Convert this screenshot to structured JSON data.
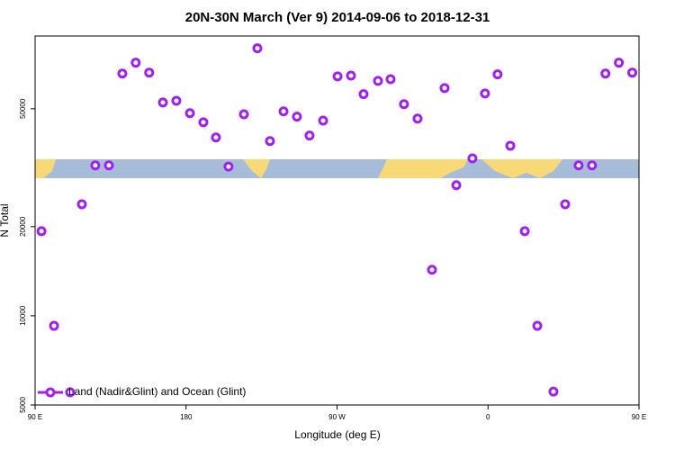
{
  "chart_data": {
    "type": "scatter",
    "title": "20N-30N March (Ver 9)   2014-09-06 to 2018-12-31",
    "x_label": "Longitude (deg E)",
    "y_label": "N Total",
    "log_y": true,
    "xlim": [
      90,
      450
    ],
    "ylim": [
      5000,
      88000
    ],
    "xticks": [
      {
        "value": 90,
        "label": "90 E"
      },
      {
        "value": 180,
        "label": "180"
      },
      {
        "value": 270,
        "label": "90 W"
      },
      {
        "value": 360,
        "label": "0"
      },
      {
        "value": 450,
        "label": "90 E"
      }
    ],
    "xticks_extra": [],
    "yticks": [
      5000,
      10000,
      20000,
      50000
    ],
    "legend": "bottom-left",
    "series": [
      {
        "name": "Land (Nadir&Glint) and Ocean (Glint)",
        "color": "#a020f0",
        "x": [
          93.8,
          101.3,
          110.9,
          117.9,
          125.9,
          134,
          142,
          150,
          158,
          166.2,
          174.2,
          182.3,
          190.3,
          197.8,
          205.3,
          214.5,
          222.5,
          230,
          238.1,
          246.1,
          253.6,
          261.7,
          270.3,
          278.3,
          285.8,
          294.4,
          301.9,
          309.9,
          318,
          326.6,
          334.1,
          341.1,
          350.7,
          358.2,
          365.7,
          373.3,
          381.9,
          389.4,
          399,
          406,
          414,
          422,
          430,
          438,
          446
        ],
        "values": [
          19300,
          9250,
          5520,
          23800,
          32200,
          32200,
          65700,
          71500,
          66200,
          52500,
          53200,
          48300,
          45000,
          40000,
          31900,
          47900,
          80000,
          38900,
          49000,
          47000,
          40600,
          45600,
          64300,
          64700,
          56000,
          62100,
          62900,
          51800,
          46300,
          14300,
          58700,
          27600,
          34000,
          56300,
          65300,
          37500,
          19300,
          9250,
          5550,
          23800,
          32200,
          32200,
          65700,
          71500,
          66200
        ]
      }
    ]
  }
}
